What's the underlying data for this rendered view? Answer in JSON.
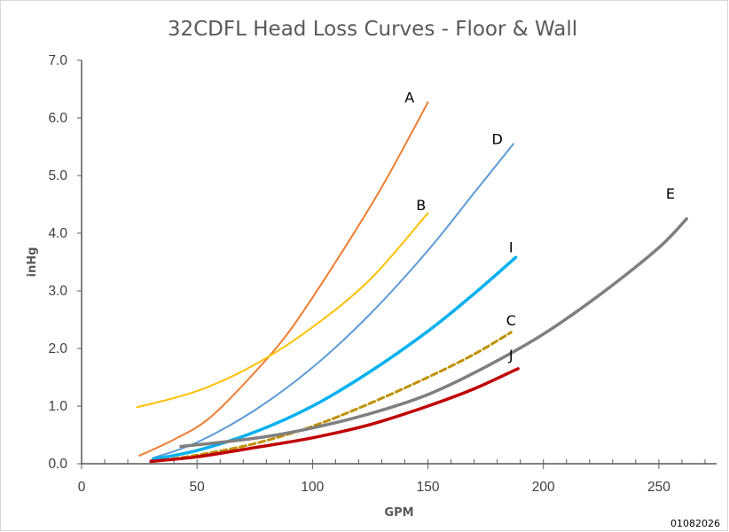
{
  "chart_data": {
    "type": "line",
    "title": "32CDFL Head Loss Curves - Floor & Wall",
    "xlabel": "GPM",
    "ylabel": "inHg",
    "xlim": [
      0,
      275
    ],
    "ylim": [
      0,
      7
    ],
    "xticks": [
      0,
      50,
      100,
      150,
      200,
      250
    ],
    "yticks": [
      0,
      1,
      2,
      3,
      4,
      5,
      6,
      7
    ],
    "xtick_labels": [
      "0",
      "50",
      "100",
      "150",
      "200",
      "250"
    ],
    "ytick_labels": [
      "0.0",
      "1.0",
      "2.0",
      "3.0",
      "4.0",
      "5.0",
      "6.0",
      "7.0"
    ],
    "grid": false,
    "legend": "none",
    "series": [
      {
        "name": "A",
        "color": "#ED7D31",
        "width": 2,
        "dash": false,
        "x": [
          25,
          40,
          55,
          73,
          90,
          110,
          130,
          150
        ],
        "y": [
          0.14,
          0.42,
          0.78,
          1.5,
          2.3,
          3.5,
          4.8,
          6.27
        ]
      },
      {
        "name": "B",
        "color": "#FFC000",
        "width": 2,
        "dash": false,
        "x": [
          24,
          50,
          75,
          100,
          125,
          150
        ],
        "y": [
          0.98,
          1.26,
          1.72,
          2.37,
          3.2,
          4.35
        ]
      },
      {
        "name": "D",
        "color": "#5B9BD5",
        "width": 2,
        "dash": false,
        "x": [
          31,
          50,
          75,
          100,
          125,
          150,
          170,
          187
        ],
        "y": [
          0.1,
          0.37,
          0.93,
          1.67,
          2.6,
          3.7,
          4.7,
          5.55
        ]
      },
      {
        "name": "I",
        "color": "#00B0F0",
        "width": 3.5,
        "dash": false,
        "x": [
          31,
          50,
          75,
          100,
          125,
          150,
          170,
          188
        ],
        "y": [
          0.08,
          0.23,
          0.55,
          1.0,
          1.6,
          2.3,
          2.95,
          3.58
        ]
      },
      {
        "name": "C",
        "color": "#BF9000",
        "width": 3,
        "dash": true,
        "x": [
          31,
          50,
          75,
          100,
          125,
          150,
          170,
          186
        ],
        "y": [
          0.04,
          0.15,
          0.35,
          0.65,
          1.05,
          1.5,
          1.9,
          2.28
        ]
      },
      {
        "name": "E",
        "color": "#7F7F7F",
        "width": 3.5,
        "dash": false,
        "x": [
          43,
          60,
          80,
          100,
          125,
          150,
          175,
          200,
          225,
          250,
          262
        ],
        "y": [
          0.3,
          0.37,
          0.47,
          0.62,
          0.87,
          1.2,
          1.68,
          2.25,
          2.95,
          3.75,
          4.25
        ]
      },
      {
        "name": "J",
        "color": "#C00000",
        "width": 3.5,
        "dash": false,
        "x": [
          30,
          50,
          75,
          100,
          125,
          150,
          170,
          189
        ],
        "y": [
          0.04,
          0.12,
          0.28,
          0.45,
          0.68,
          1.0,
          1.3,
          1.65
        ]
      }
    ],
    "annotations": [
      {
        "text": "A",
        "x": 142,
        "y": 6.27
      },
      {
        "text": "B",
        "x": 147,
        "y": 4.4
      },
      {
        "text": "D",
        "x": 180,
        "y": 5.55
      },
      {
        "text": "E",
        "x": 255,
        "y": 4.6
      },
      {
        "text": "I",
        "x": 186,
        "y": 3.67
      },
      {
        "text": "C",
        "x": 186,
        "y": 2.4
      },
      {
        "text": "J",
        "x": 186,
        "y": 1.8
      }
    ],
    "footnote": "01082026"
  }
}
